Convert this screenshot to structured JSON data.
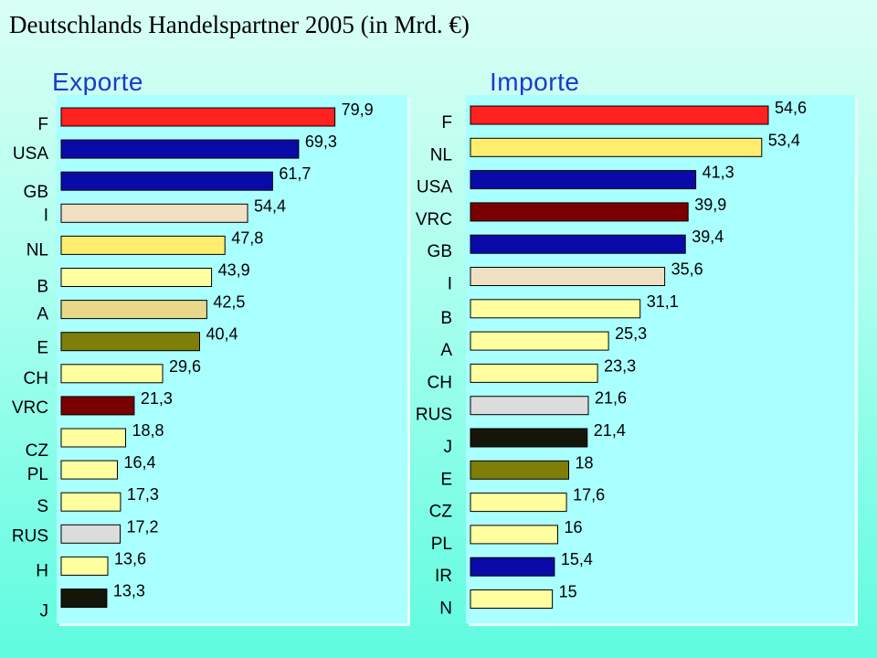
{
  "page": {
    "title": "Deutschlands Handelspartner 2005 (in Mrd. €)"
  },
  "chart_data": [
    {
      "type": "bar",
      "orientation": "horizontal",
      "title": "Exporte",
      "categories": [
        "F",
        "USA",
        "GB",
        "I",
        "NL",
        "B",
        "A",
        "E",
        "CH",
        "VRC",
        "CZ",
        "PL",
        "S",
        "RUS",
        "H",
        "J"
      ],
      "values": [
        79.9,
        69.3,
        61.7,
        54.4,
        47.8,
        43.9,
        42.5,
        40.4,
        29.6,
        21.3,
        18.8,
        16.4,
        17.3,
        17.2,
        13.6,
        13.3
      ],
      "value_labels": [
        "79,9",
        "69,3",
        "61,7",
        "54,4",
        "47,8",
        "43,9",
        "42,5",
        "40,4",
        "29,6",
        "21,3",
        "18,8",
        "16,4",
        "17,3",
        "17,2",
        "13,6",
        "13,3"
      ],
      "colors": [
        "#ff2020",
        "#0a0aa8",
        "#0a0aa8",
        "#efe0c4",
        "#ffee6e",
        "#ffffa0",
        "#e8d98a",
        "#7e7e08",
        "#ffffa0",
        "#7a0000",
        "#ffffa0",
        "#ffffa0",
        "#ffffa0",
        "#dcdcdc",
        "#ffffa0",
        "#15150a"
      ],
      "xlim": [
        0,
        80
      ]
    },
    {
      "type": "bar",
      "orientation": "horizontal",
      "title": "Importe",
      "categories": [
        "F",
        "NL",
        "USA",
        "VRC",
        "GB",
        "I",
        "B",
        "A",
        "CH",
        "RUS",
        "J",
        "E",
        "CZ",
        "PL",
        "IR",
        "N"
      ],
      "values": [
        54.6,
        53.4,
        41.3,
        39.9,
        39.4,
        35.6,
        31.1,
        25.3,
        23.3,
        21.6,
        21.4,
        18,
        17.6,
        16,
        15.4,
        15
      ],
      "value_labels": [
        "54,6",
        "53,4",
        "41,3",
        "39,9",
        "39,4",
        "35,6",
        "31,1",
        "25,3",
        "23,3",
        "21,6",
        "21,4",
        "18",
        "17,6",
        "16",
        "15,4",
        "15"
      ],
      "colors": [
        "#ff2020",
        "#ffee6e",
        "#0a0aa8",
        "#7a0000",
        "#0a0aa8",
        "#efe0c4",
        "#ffffa0",
        "#ffffa0",
        "#ffffa0",
        "#dcdcdc",
        "#15150a",
        "#7e7e08",
        "#ffffa0",
        "#ffffa0",
        "#0a0aa8",
        "#ffffa0"
      ],
      "xlim": [
        0,
        54.6
      ]
    }
  ]
}
